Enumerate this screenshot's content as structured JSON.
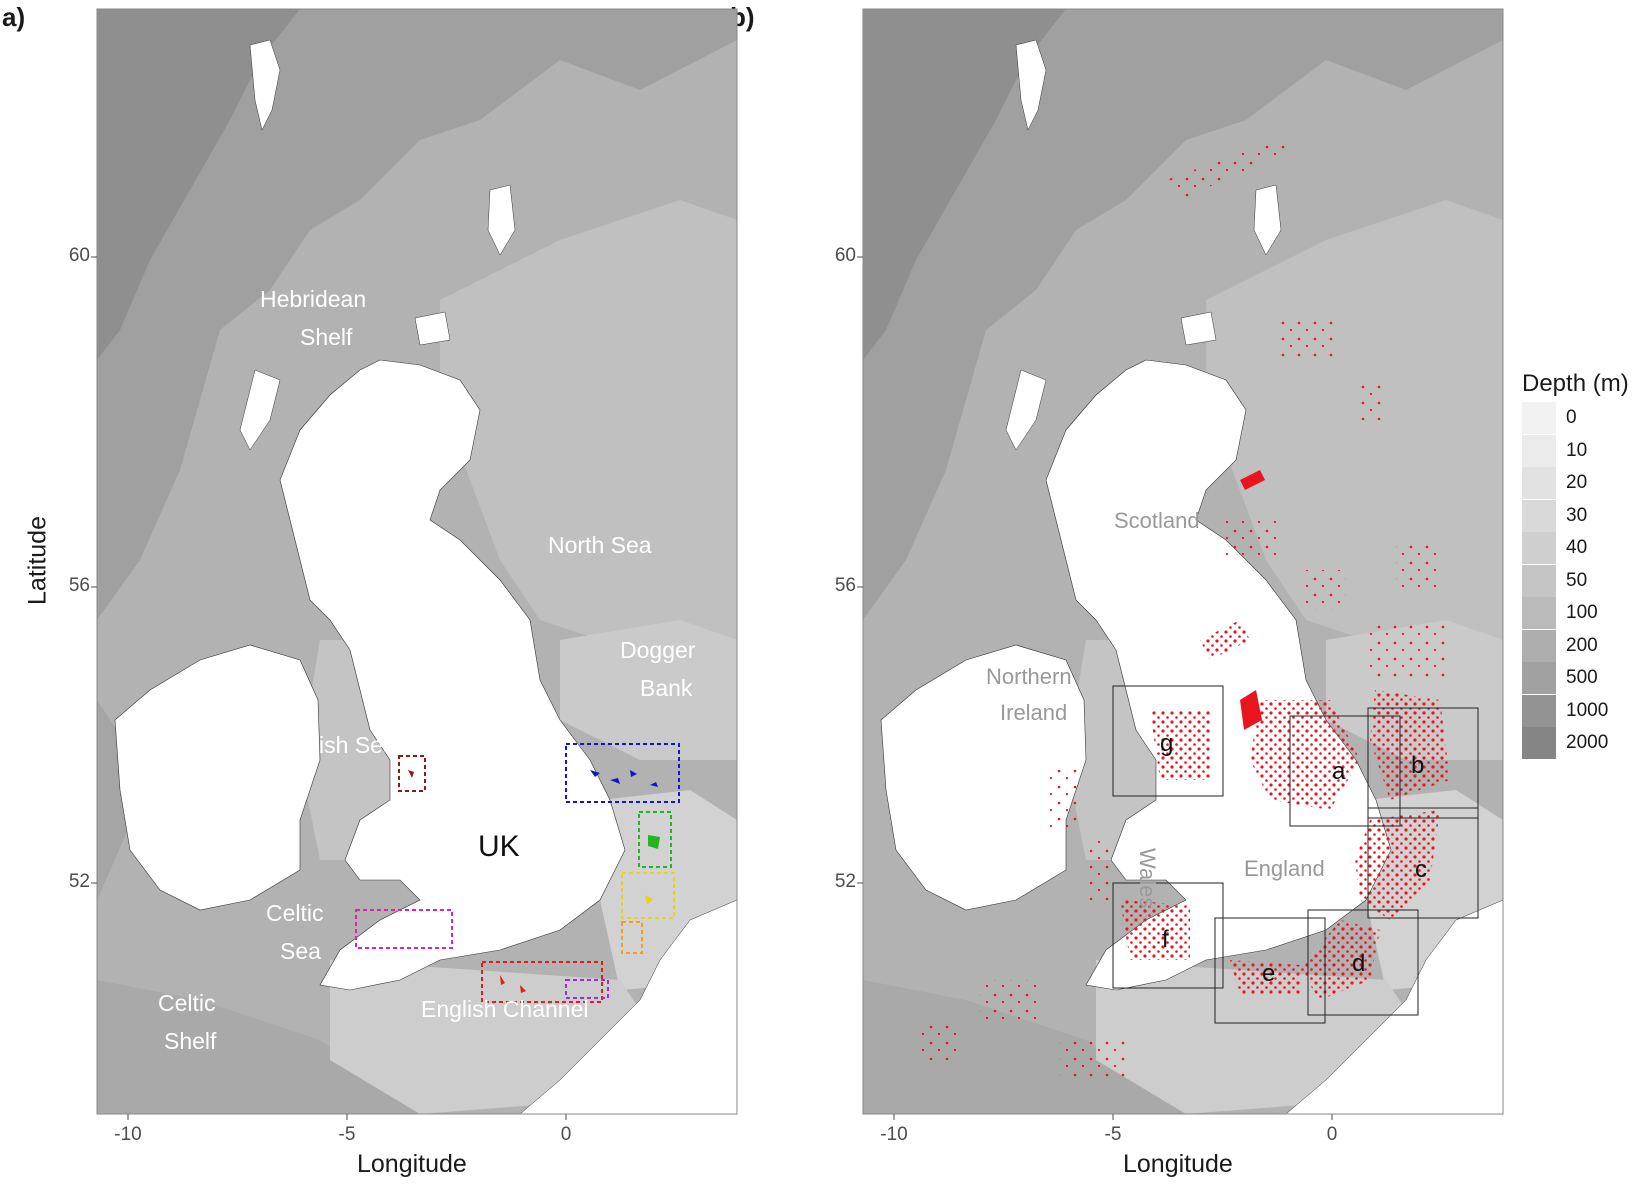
{
  "panels": [
    {
      "letter": "a)",
      "x_label": "Longitude",
      "y_label": "Latitude",
      "x_ticks": [
        "-10",
        "-5",
        "0"
      ],
      "y_ticks": [
        "60",
        "56",
        "52"
      ],
      "region_labels": [
        "Hebridean",
        "Shelf",
        "North Sea",
        "Dogger",
        "Bank",
        "Irish Sea",
        "UK",
        "Celtic",
        "Sea",
        "Celtic",
        "Shelf",
        "English Channel"
      ]
    },
    {
      "letter": "b)",
      "x_label": "Longitude",
      "x_ticks": [
        "-10",
        "-5",
        "0"
      ],
      "y_ticks": [
        "60",
        "56",
        "52"
      ],
      "country_labels": [
        "Scotland",
        "Northern",
        "Ireland",
        "Wales",
        "England"
      ],
      "box_labels": [
        "a",
        "b",
        "c",
        "d",
        "e",
        "f",
        "g"
      ]
    }
  ],
  "legend": {
    "title": "Depth (m)",
    "levels": [
      "0",
      "10",
      "20",
      "30",
      "40",
      "50",
      "100",
      "200",
      "500",
      "1000",
      "2000"
    ],
    "colors": [
      "#f2f2f2",
      "#ebebeb",
      "#e2e2e2",
      "#d9d9d9",
      "#cfcfcf",
      "#c5c5c5",
      "#bababa",
      "#aeaeae",
      "#a1a1a1",
      "#939393",
      "#858585"
    ]
  },
  "colors": {
    "land": "#ffffff",
    "sea_shallow": "#c8c8c8",
    "sea_mid": "#b5b5b5",
    "sea_deep": "#9a9a9a",
    "fishing_points": "#e8141e",
    "study_boxes": [
      "#1515d0",
      "#22b422",
      "#e8d21a",
      "#f0a21a",
      "#e01e1e",
      "#9b2ce0",
      "#e020b0",
      "#8b1a1a"
    ]
  }
}
